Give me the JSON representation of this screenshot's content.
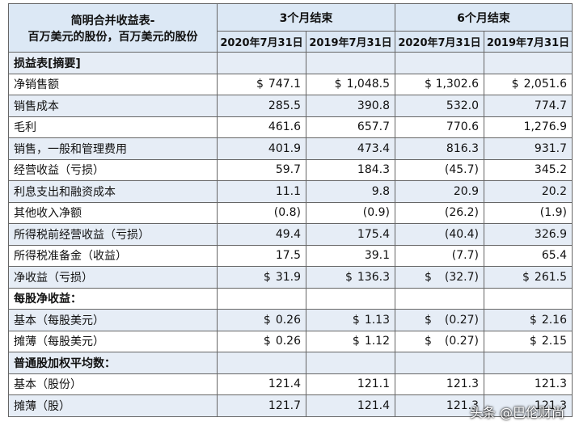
{
  "header": {
    "title_lines": [
      "简明合并收益表-",
      "百万美元的股份，百万美元的股份"
    ],
    "groups": [
      "3个月结束",
      "6个月结束"
    ],
    "dates": [
      "2020年7月31日",
      "2019年7月31日",
      "2020年7月31日",
      "2019年7月31日"
    ]
  },
  "rows": [
    {
      "label": "损益表[摘要]",
      "section": true
    },
    {
      "label": "净销售额",
      "cells": [
        {
          "currency": "$",
          "amount": "747.1"
        },
        {
          "currency": "$",
          "amount": "1,048.5"
        },
        {
          "currency": "$",
          "amount": "1,302.6"
        },
        {
          "currency": "$",
          "amount": "2,051.6"
        }
      ]
    },
    {
      "label": "销售成本",
      "cells": [
        {
          "amount": "285.5"
        },
        {
          "amount": "390.8"
        },
        {
          "amount": "532.0"
        },
        {
          "amount": "774.7"
        }
      ]
    },
    {
      "label": "毛利",
      "cells": [
        {
          "amount": "461.6"
        },
        {
          "amount": "657.7"
        },
        {
          "amount": "770.6"
        },
        {
          "amount": "1,276.9"
        }
      ]
    },
    {
      "label": "销售，一般和管理费用",
      "cells": [
        {
          "amount": "401.9"
        },
        {
          "amount": "473.4"
        },
        {
          "amount": "816.3"
        },
        {
          "amount": "931.7"
        }
      ]
    },
    {
      "label": "经营收益（亏损）",
      "cells": [
        {
          "amount": "59.7"
        },
        {
          "amount": "184.3"
        },
        {
          "amount": "(45.7)"
        },
        {
          "amount": "345.2"
        }
      ]
    },
    {
      "label": "利息支出和融资成本",
      "cells": [
        {
          "amount": "11.1"
        },
        {
          "amount": "9.8"
        },
        {
          "amount": "20.9"
        },
        {
          "amount": "20.2"
        }
      ]
    },
    {
      "label": "其他收入净额",
      "cells": [
        {
          "amount": "(0.8)"
        },
        {
          "amount": "(0.9)"
        },
        {
          "amount": "(26.2)"
        },
        {
          "amount": "(1.9)"
        }
      ]
    },
    {
      "label": "所得税前经营收益（亏损）",
      "cells": [
        {
          "amount": "49.4"
        },
        {
          "amount": "175.4"
        },
        {
          "amount": "(40.4)"
        },
        {
          "amount": "326.9"
        }
      ]
    },
    {
      "label": "所得税准备金（收益）",
      "cells": [
        {
          "amount": "17.5"
        },
        {
          "amount": "39.1"
        },
        {
          "amount": "(7.7)"
        },
        {
          "amount": "65.4"
        }
      ]
    },
    {
      "label": "净收益（亏损）",
      "cells": [
        {
          "currency": "$",
          "amount": "31.9"
        },
        {
          "currency": "$",
          "amount": "136.3"
        },
        {
          "currency": "$",
          "amount": "(32.7)"
        },
        {
          "currency": "$",
          "amount": "261.5"
        }
      ]
    },
    {
      "label": "每股净收益：",
      "section": true
    },
    {
      "label": "基本（每股美元）",
      "cells": [
        {
          "currency": "$",
          "amount": "0.26"
        },
        {
          "currency": "$",
          "amount": "1.13"
        },
        {
          "currency": "$",
          "amount": "(0.27)"
        },
        {
          "currency": "$",
          "amount": "2.16"
        }
      ]
    },
    {
      "label": "摊薄（每股美元）",
      "cells": [
        {
          "currency": "$",
          "amount": "0.26"
        },
        {
          "currency": "$",
          "amount": "1.12"
        },
        {
          "currency": "$",
          "amount": "(0.27)"
        },
        {
          "currency": "$",
          "amount": "2.15"
        }
      ]
    },
    {
      "label": "普通股加权平均数：",
      "section": true
    },
    {
      "label": "基本（股份）",
      "cells": [
        {
          "amount": "121.4"
        },
        {
          "amount": "121.1"
        },
        {
          "amount": "121.3"
        },
        {
          "amount": "121.3"
        }
      ]
    },
    {
      "label": "摊薄（股）",
      "cells": [
        {
          "amount": "121.7"
        },
        {
          "amount": "121.4"
        },
        {
          "amount": "121.3"
        },
        {
          "amount": "121.3"
        }
      ]
    }
  ],
  "watermark": "头条 @巴伦财尚"
}
